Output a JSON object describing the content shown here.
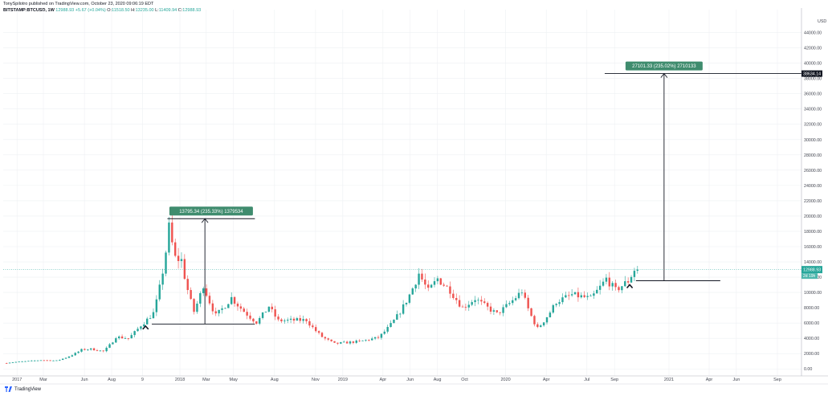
{
  "header": {
    "publisher_line": "TonySpilotro published on TradingView.com, October 23, 2020 09:06:19 EDT",
    "symbol": "BITSTAMP:BTCUSD, 1W",
    "last": "12988.93",
    "change": "+5.67 (+0.04%)",
    "o": "O:",
    "o_val": "11518.50",
    "h": "H:",
    "h_val": "13235.00",
    "l": "L:",
    "l_val": "11409.94",
    "c": "C:",
    "c_val": "12988.93"
  },
  "brand": {
    "name": "TradingView",
    "icon": "tradingview-logo-icon"
  },
  "colors": {
    "up": "#26a69a",
    "down": "#ef5350",
    "grid": "#eef0f3",
    "axis_text": "#434651",
    "measure_label_bg": "#3f8c6e"
  },
  "chart_data": {
    "type": "candlestick",
    "title": "",
    "y_axis_label": "USD",
    "y_range": [
      -500,
      47000
    ],
    "y_ticks": [
      0,
      2000,
      4000,
      6000,
      8000,
      10000,
      12000,
      14000,
      16000,
      18000,
      20000,
      22000,
      24000,
      26000,
      28000,
      30000,
      32000,
      34000,
      36000,
      38000,
      40000,
      42000,
      44000
    ],
    "y_tick_labels": [
      "0.00",
      "2000.00",
      "4000.00",
      "6000.00",
      "8000.00",
      "10000.00",
      "12000.00",
      "14000.00",
      "16000.00",
      "18000.00",
      "20000.00",
      "22000.00",
      "24000.00",
      "26000.00",
      "28000.00",
      "30000.00",
      "32000.00",
      "34000.00",
      "36000.00",
      "38000.00",
      "40000.00",
      "42000.00",
      "44000.00"
    ],
    "x_tick_labels": [
      {
        "label": "2017",
        "date": "2017-01-01"
      },
      {
        "label": "Mar",
        "date": "2017-03-01"
      },
      {
        "label": "Jun",
        "date": "2017-06-01"
      },
      {
        "label": "Aug",
        "date": "2017-08-01"
      },
      {
        "label": "9",
        "date": "2017-10-09"
      },
      {
        "label": "2018",
        "date": "2018-01-01"
      },
      {
        "label": "Mar",
        "date": "2018-03-01"
      },
      {
        "label": "May",
        "date": "2018-05-01"
      },
      {
        "label": "Aug",
        "date": "2018-08-01"
      },
      {
        "label": "Nov",
        "date": "2018-11-01"
      },
      {
        "label": "2019",
        "date": "2019-01-01"
      },
      {
        "label": "Apr",
        "date": "2019-04-01"
      },
      {
        "label": "Jun",
        "date": "2019-06-01"
      },
      {
        "label": "Aug",
        "date": "2019-08-01"
      },
      {
        "label": "Oct",
        "date": "2019-10-01"
      },
      {
        "label": "2020",
        "date": "2020-01-01"
      },
      {
        "label": "Apr",
        "date": "2020-04-01"
      },
      {
        "label": "Jul",
        "date": "2020-07-01"
      },
      {
        "label": "Sep",
        "date": "2020-09-01"
      },
      {
        "label": "2021",
        "date": "2021-01-01"
      },
      {
        "label": "Apr",
        "date": "2021-04-01"
      },
      {
        "label": "Jun",
        "date": "2021-06-01"
      },
      {
        "label": "Sep",
        "date": "2021-09-01"
      }
    ],
    "x_range": [
      "2016-12-01",
      "2021-10-25"
    ],
    "price_anchors": [
      {
        "date": "2016-12-05",
        "price": 760
      },
      {
        "date": "2017-01-02",
        "price": 900
      },
      {
        "date": "2017-02-27",
        "price": 1150
      },
      {
        "date": "2017-04-03",
        "price": 1080
      },
      {
        "date": "2017-05-29",
        "price": 2500
      },
      {
        "date": "2017-06-19",
        "price": 2600
      },
      {
        "date": "2017-07-17",
        "price": 2300
      },
      {
        "date": "2017-08-14",
        "price": 4200
      },
      {
        "date": "2017-09-11",
        "price": 4000
      },
      {
        "date": "2017-10-09",
        "price": 5700
      },
      {
        "date": "2017-11-06",
        "price": 7300
      },
      {
        "date": "2017-12-11",
        "price": 18500
      },
      {
        "date": "2017-12-25",
        "price": 14500
      },
      {
        "date": "2018-01-08",
        "price": 14200
      },
      {
        "date": "2018-02-05",
        "price": 7500
      },
      {
        "date": "2018-02-26",
        "price": 11000
      },
      {
        "date": "2018-03-26",
        "price": 7000
      },
      {
        "date": "2018-04-30",
        "price": 9300
      },
      {
        "date": "2018-06-25",
        "price": 6100
      },
      {
        "date": "2018-07-23",
        "price": 8200
      },
      {
        "date": "2018-08-13",
        "price": 6300
      },
      {
        "date": "2018-10-15",
        "price": 6400
      },
      {
        "date": "2018-11-19",
        "price": 4200
      },
      {
        "date": "2018-12-17",
        "price": 3300
      },
      {
        "date": "2019-02-11",
        "price": 3600
      },
      {
        "date": "2019-03-25",
        "price": 4100
      },
      {
        "date": "2019-05-13",
        "price": 7500
      },
      {
        "date": "2019-06-24",
        "price": 12500
      },
      {
        "date": "2019-07-15",
        "price": 10200
      },
      {
        "date": "2019-08-05",
        "price": 11800
      },
      {
        "date": "2019-09-02",
        "price": 10300
      },
      {
        "date": "2019-09-30",
        "price": 8000
      },
      {
        "date": "2019-10-28",
        "price": 9200
      },
      {
        "date": "2019-12-16",
        "price": 7200
      },
      {
        "date": "2020-02-10",
        "price": 10200
      },
      {
        "date": "2020-03-16",
        "price": 5300
      },
      {
        "date": "2020-04-27",
        "price": 8800
      },
      {
        "date": "2020-06-01",
        "price": 9700
      },
      {
        "date": "2020-07-13",
        "price": 9200
      },
      {
        "date": "2020-08-17",
        "price": 11800
      },
      {
        "date": "2020-09-07",
        "price": 10300
      },
      {
        "date": "2020-10-05",
        "price": 11500
      },
      {
        "date": "2020-10-19",
        "price": 12988
      }
    ],
    "last_price_label": "12988.93",
    "countdown_label": "2d 19h",
    "target_price_label": "38634.14",
    "measurements": [
      {
        "label": "13795.34 (235.33%) 1379534",
        "from": {
          "date": "2017-10-30",
          "price": 5860
        },
        "to": {
          "date": "2018-02-26",
          "price": 19650
        },
        "horizontal_span": [
          "2017-10-30",
          "2018-06-18"
        ]
      },
      {
        "label": "27101.33 (235.02%) 2710133",
        "from": {
          "date": "2020-10-19",
          "price": 11533
        },
        "to": {
          "date": "2020-12-21",
          "price": 38634
        },
        "horizontal_span": [
          "2020-10-19",
          "2021-04-26"
        ]
      }
    ],
    "markers": [
      {
        "type": "arrow-up",
        "date": "2017-10-16",
        "price": 5500
      },
      {
        "type": "arrow-up",
        "date": "2020-10-05",
        "price": 10900
      }
    ]
  }
}
